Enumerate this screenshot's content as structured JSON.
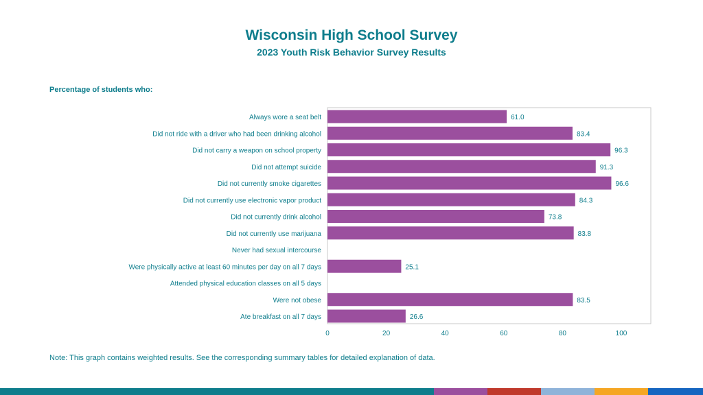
{
  "header": {
    "title": "Wisconsin High School Survey",
    "subtitle": "2023 Youth Risk Behavior Survey Results"
  },
  "section_label": "Percentage of students who:",
  "note": "Note: This graph contains weighted results. See the corresponding summary tables for detailed explanation of data.",
  "colors": {
    "bar": "#9b4f9e",
    "text": "#0e7d8c",
    "plot_border": "#c8c8c8",
    "footer": [
      "#0e7d8c",
      "#9b4f9e",
      "#c0392b",
      "#8fb3d9",
      "#f5a623",
      "#1565c0"
    ]
  },
  "chart_data": {
    "type": "bar",
    "orientation": "horizontal",
    "categories": [
      "Always wore a seat belt",
      "Did not ride with a driver who had been drinking alcohol",
      "Did not carry a weapon on school property",
      "Did not attempt suicide",
      "Did not currently smoke cigarettes",
      "Did not currently use electronic vapor product",
      "Did not currently drink alcohol",
      "Did not currently use marijuana",
      "Never had sexual intercourse",
      "Were physically active at least 60 minutes per day on all 7 days",
      "Attended physical education classes on all 5 days",
      "Were not obese",
      "Ate breakfast on all 7 days"
    ],
    "values": [
      61.0,
      83.4,
      96.3,
      91.3,
      96.6,
      84.3,
      73.8,
      83.8,
      null,
      25.1,
      null,
      83.5,
      26.6
    ],
    "value_labels": [
      "61.0",
      "83.4",
      "96.3",
      "91.3",
      "96.6",
      "84.3",
      "73.8",
      "83.8",
      "",
      "25.1",
      "",
      "83.5",
      "26.6"
    ],
    "xlim": [
      0,
      110
    ],
    "xticks": [
      0,
      20,
      40,
      60,
      80,
      100
    ],
    "grid": false
  }
}
